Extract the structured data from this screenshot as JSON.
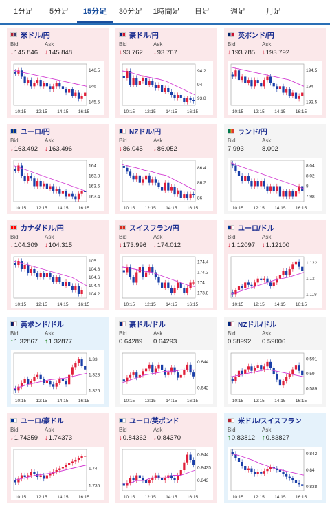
{
  "tabs": [
    "1分足",
    "5分足",
    "15分足",
    "30分足",
    "1時間足",
    "日足",
    "週足",
    "月足"
  ],
  "active_tab": 2,
  "labels": {
    "bid": "Bid",
    "ask": "Ask"
  },
  "cards": [
    {
      "name": "米ドル/円",
      "dir": "down",
      "bid": "145.846",
      "ask": "145.848",
      "flag": "us",
      "chart_data": {
        "type": "candlestick",
        "x_ticks": [
          "10:15",
          "12:15",
          "14:15",
          "16:15"
        ],
        "y_ticks": [
          "146.5",
          "146",
          "145.5"
        ],
        "ylim": [
          145.4,
          146.7
        ],
        "closes": [
          146.4,
          146.5,
          146.3,
          146.1,
          146.2,
          146.0,
          146.1,
          146.2,
          146.0,
          146.1,
          146.0,
          145.9,
          146.0,
          146.1,
          146.0,
          145.9,
          145.8,
          145.9,
          145.7,
          145.8,
          145.6,
          145.7,
          145.8
        ],
        "ma": [
          146.5,
          146.45,
          146.4,
          146.35,
          146.3,
          146.25,
          146.2,
          146.15,
          146.1,
          146.05,
          146.0
        ]
      }
    },
    {
      "name": "豪ドル/円",
      "dir": "down",
      "bid": "93.762",
      "ask": "93.767",
      "flag": "au",
      "chart_data": {
        "type": "candlestick",
        "x_ticks": [
          "10:15",
          "12:15",
          "14:15",
          "16:15"
        ],
        "y_ticks": [
          "94.2",
          "94",
          "93.8"
        ],
        "ylim": [
          93.7,
          94.3
        ],
        "closes": [
          94.1,
          94.2,
          94.0,
          94.1,
          94.0,
          94.05,
          94.1,
          94.0,
          94.05,
          94.0,
          93.95,
          94.0,
          93.9,
          93.95,
          93.9,
          93.85,
          93.8,
          93.85,
          93.8,
          93.75,
          93.8,
          93.78,
          93.76
        ],
        "ma": [
          94.2,
          94.18,
          94.15,
          94.12,
          94.1,
          94.08,
          94.05,
          94.0,
          93.95,
          93.9,
          93.85
        ]
      }
    },
    {
      "name": "英ポンド/円",
      "dir": "down",
      "bid": "193.785",
      "ask": "193.792",
      "flag": "uk",
      "chart_data": {
        "type": "candlestick",
        "x_ticks": [
          "10:15",
          "12:15",
          "14:15",
          "16:15"
        ],
        "y_ticks": [
          "194.5",
          "194",
          "193.5"
        ],
        "ylim": [
          193.4,
          194.7
        ],
        "closes": [
          194.3,
          194.5,
          194.2,
          194.3,
          194.1,
          194.2,
          194.0,
          194.2,
          194.1,
          194.0,
          194.2,
          194.3,
          194.1,
          194.0,
          193.9,
          194.0,
          193.8,
          193.9,
          193.7,
          193.8,
          193.6,
          193.7,
          193.8
        ],
        "ma": [
          194.6,
          194.55,
          194.5,
          194.45,
          194.4,
          194.35,
          194.3,
          194.25,
          194.2,
          194.1,
          194.0
        ]
      }
    },
    {
      "name": "ユーロ/円",
      "dir": "down",
      "bid": "163.492",
      "ask": "163.496",
      "flag": "eu",
      "chart_data": {
        "type": "candlestick",
        "x_ticks": [
          "10:15",
          "12:15",
          "14:15",
          "16:15"
        ],
        "y_ticks": [
          "164",
          "163.8",
          "163.6",
          "163.4"
        ],
        "ylim": [
          163.3,
          164.1
        ],
        "closes": [
          163.9,
          164.0,
          163.8,
          163.7,
          163.8,
          163.75,
          163.6,
          163.7,
          163.6,
          163.65,
          163.55,
          163.6,
          163.5,
          163.55,
          163.45,
          163.5,
          163.4,
          163.45,
          163.4,
          163.35,
          163.45,
          163.5,
          163.49
        ],
        "ma": [
          164.0,
          163.95,
          163.9,
          163.85,
          163.8,
          163.75,
          163.7,
          163.65,
          163.6,
          163.55,
          163.5
        ]
      }
    },
    {
      "name": "NZドル/円",
      "dir": "down",
      "bid": "86.045",
      "ask": "86.052",
      "flag": "nz",
      "chart_data": {
        "type": "candlestick",
        "x_ticks": [
          "10:15",
          "12:15",
          "14:15",
          "16:15"
        ],
        "y_ticks": [
          "86.4",
          "86.2",
          "86"
        ],
        "ylim": [
          85.95,
          86.5
        ],
        "closes": [
          86.4,
          86.35,
          86.3,
          86.25,
          86.3,
          86.2,
          86.25,
          86.3,
          86.2,
          86.25,
          86.2,
          86.15,
          86.1,
          86.2,
          86.1,
          86.15,
          86.05,
          86.1,
          86.0,
          86.05,
          86.0,
          86.05,
          86.04
        ],
        "ma": [
          86.45,
          86.42,
          86.4,
          86.37,
          86.35,
          86.32,
          86.3,
          86.25,
          86.2,
          86.15,
          86.1
        ]
      }
    },
    {
      "name": "ランド/円",
      "dir": "neutral",
      "bid": "7.993",
      "ask": "8.002",
      "flag": "za",
      "chart_data": {
        "type": "candlestick",
        "x_ticks": [
          "10:15",
          "12:15",
          "14:15",
          "16:15"
        ],
        "y_ticks": [
          "8.04",
          "8.02",
          "8",
          "7.98"
        ],
        "ylim": [
          7.97,
          8.05
        ],
        "closes": [
          8.04,
          8.03,
          8.02,
          8.01,
          8.02,
          8.01,
          8.0,
          8.01,
          8.0,
          8.01,
          8.0,
          7.99,
          8.0,
          7.99,
          8.0,
          7.98,
          7.99,
          7.98,
          7.99,
          7.98,
          7.99,
          8.0,
          7.99
        ],
        "ma": [
          8.045,
          8.04,
          8.035,
          8.03,
          8.025,
          8.02,
          8.015,
          8.01,
          8.005,
          8.0,
          7.995
        ]
      }
    },
    {
      "name": "カナダドル/円",
      "dir": "down",
      "bid": "104.309",
      "ask": "104.315",
      "flag": "ca",
      "chart_data": {
        "type": "candlestick",
        "x_ticks": [
          "10:15",
          "12:15",
          "14:15",
          "16:15"
        ],
        "y_ticks": [
          "105",
          "104.8",
          "104.6",
          "104.4",
          "104.2"
        ],
        "ylim": [
          104.1,
          105.1
        ],
        "closes": [
          104.9,
          105.0,
          104.8,
          104.9,
          104.7,
          104.8,
          104.7,
          104.6,
          104.7,
          104.6,
          104.7,
          104.6,
          104.5,
          104.6,
          104.5,
          104.4,
          104.5,
          104.4,
          104.3,
          104.4,
          104.2,
          104.3,
          104.3
        ],
        "ma": [
          105.0,
          104.95,
          104.9,
          104.85,
          104.8,
          104.75,
          104.7,
          104.65,
          104.6,
          104.5,
          104.4
        ]
      }
    },
    {
      "name": "スイスフラン/円",
      "dir": "down",
      "bid": "173.996",
      "ask": "174.012",
      "flag": "ch",
      "chart_data": {
        "type": "candlestick",
        "x_ticks": [
          "10:15",
          "12:15",
          "14:15",
          "16:15"
        ],
        "y_ticks": [
          "174.4",
          "174.2",
          "174",
          "173.8"
        ],
        "ylim": [
          173.7,
          174.5
        ],
        "closes": [
          174.2,
          174.3,
          174.1,
          174.0,
          174.2,
          174.3,
          174.1,
          174.2,
          174.3,
          174.2,
          174.1,
          174.0,
          173.9,
          174.0,
          173.9,
          173.8,
          173.9,
          174.0,
          173.9,
          173.8,
          173.9,
          174.0,
          174.0
        ],
        "ma": [
          174.3,
          174.28,
          174.25,
          174.22,
          174.2,
          174.15,
          174.1,
          174.05,
          174.0,
          173.95,
          173.92
        ]
      }
    },
    {
      "name": "ユーロ/ドル",
      "dir": "down",
      "bid": "1.12097",
      "ask": "1.12100",
      "flag": "euus",
      "chart_data": {
        "type": "candlestick",
        "x_ticks": [
          "10:15",
          "12:15",
          "14:15",
          "16:15"
        ],
        "y_ticks": [
          "1.122",
          "1.12",
          "1.118"
        ],
        "ylim": [
          1.1175,
          1.1228
        ],
        "closes": [
          1.118,
          1.1185,
          1.119,
          1.1188,
          1.1195,
          1.1192,
          1.119,
          1.1195,
          1.12,
          1.1198,
          1.12,
          1.1195,
          1.119,
          1.1195,
          1.12,
          1.1205,
          1.121,
          1.1205,
          1.1212,
          1.1218,
          1.1222,
          1.1215,
          1.121
        ],
        "ma": [
          1.118,
          1.1183,
          1.1186,
          1.1189,
          1.1192,
          1.1195,
          1.1198,
          1.12,
          1.1202,
          1.1205,
          1.1208
        ]
      }
    },
    {
      "name": "英ポンド/ドル",
      "dir": "up",
      "bid": "1.32867",
      "ask": "1.32877",
      "flag": "ukus",
      "chart_data": {
        "type": "candlestick",
        "x_ticks": [
          "10:15",
          "12:15",
          "14:15",
          "16:15"
        ],
        "y_ticks": [
          "1.33",
          "1.328",
          "1.326"
        ],
        "ylim": [
          1.3255,
          1.3308
        ],
        "closes": [
          1.326,
          1.3265,
          1.327,
          1.3275,
          1.3268,
          1.3272,
          1.3278,
          1.328,
          1.3275,
          1.327,
          1.3272,
          1.3268,
          1.3265,
          1.327,
          1.3275,
          1.3272,
          1.3268,
          1.328,
          1.329,
          1.3295,
          1.33,
          1.3292,
          1.3287
        ],
        "ma": [
          1.3262,
          1.3265,
          1.3268,
          1.327,
          1.3272,
          1.3274,
          1.3275,
          1.3276,
          1.3278,
          1.328,
          1.3282
        ]
      }
    },
    {
      "name": "豪ドル/ドル",
      "dir": "neutral",
      "bid": "0.64289",
      "ask": "0.64293",
      "flag": "auus",
      "chart_data": {
        "type": "candlestick",
        "x_ticks": [
          "10:15",
          "12:15",
          "14:15",
          "16:15"
        ],
        "y_ticks": [
          "0.644",
          "0.642"
        ],
        "ylim": [
          0.6415,
          0.6447
        ],
        "closes": [
          0.6425,
          0.6428,
          0.643,
          0.6432,
          0.6428,
          0.643,
          0.6433,
          0.6435,
          0.6438,
          0.6432,
          0.6435,
          0.6438,
          0.6434,
          0.643,
          0.6432,
          0.6436,
          0.6432,
          0.6428,
          0.643,
          0.6434,
          0.6438,
          0.6432,
          0.6429
        ],
        "ma": [
          0.6424,
          0.6426,
          0.6428,
          0.643,
          0.6431,
          0.6432,
          0.6433,
          0.6433,
          0.6434,
          0.6434,
          0.6434
        ]
      }
    },
    {
      "name": "NZドル/ドル",
      "dir": "neutral",
      "bid": "0.58992",
      "ask": "0.59006",
      "flag": "nzus",
      "chart_data": {
        "type": "candlestick",
        "x_ticks": [
          "10:15",
          "12:15",
          "14:15",
          "16:15"
        ],
        "y_ticks": [
          "0.591",
          "0.59",
          "0.589"
        ],
        "ylim": [
          0.5886,
          0.5914
        ],
        "closes": [
          0.5895,
          0.5898,
          0.5902,
          0.59,
          0.5903,
          0.5905,
          0.5902,
          0.5904,
          0.5906,
          0.5903,
          0.5905,
          0.5908,
          0.5904,
          0.59,
          0.5896,
          0.5892,
          0.5895,
          0.5898,
          0.59,
          0.5903,
          0.5906,
          0.5902,
          0.5899
        ],
        "ma": [
          0.5898,
          0.5899,
          0.59,
          0.5901,
          0.5902,
          0.5903,
          0.5902,
          0.5901,
          0.59,
          0.5899,
          0.5898
        ]
      }
    },
    {
      "name": "ユーロ/豪ドル",
      "dir": "down",
      "bid": "1.74359",
      "ask": "1.74373",
      "flag": "euau",
      "chart_data": {
        "type": "candlestick",
        "x_ticks": [
          "10:15",
          "12:15",
          "14:15",
          "16:15"
        ],
        "y_ticks": [
          "1.74",
          "1.735"
        ],
        "ylim": [
          1.7335,
          1.7455
        ],
        "closes": [
          1.736,
          1.737,
          1.738,
          1.7375,
          1.738,
          1.739,
          1.7385,
          1.7375,
          1.738,
          1.737,
          1.738,
          1.7385,
          1.739,
          1.7395,
          1.74,
          1.7405,
          1.741,
          1.7415,
          1.742,
          1.7425,
          1.743,
          1.7435,
          1.7436
        ],
        "ma": [
          1.7365,
          1.737,
          1.7375,
          1.738,
          1.7383,
          1.7386,
          1.739,
          1.7395,
          1.74,
          1.7405,
          1.741
        ]
      }
    },
    {
      "name": "ユーロ/英ポンド",
      "dir": "down",
      "bid": "0.84362",
      "ask": "0.84370",
      "flag": "euuk",
      "chart_data": {
        "type": "candlestick",
        "x_ticks": [
          "10:15",
          "12:15",
          "14:15",
          "16:15"
        ],
        "y_ticks": [
          "0.844",
          "0.8435",
          "0.843"
        ],
        "ylim": [
          0.8426,
          0.8442
        ],
        "closes": [
          0.8428,
          0.8429,
          0.8431,
          0.843,
          0.8432,
          0.8431,
          0.843,
          0.8429,
          0.843,
          0.8431,
          0.8432,
          0.8431,
          0.843,
          0.8431,
          0.8432,
          0.8431,
          0.843,
          0.8432,
          0.8434,
          0.8437,
          0.844,
          0.8438,
          0.8436
        ],
        "ma": [
          0.8429,
          0.8429,
          0.843,
          0.843,
          0.8431,
          0.8431,
          0.8431,
          0.8432,
          0.8432,
          0.8433,
          0.8434
        ]
      }
    },
    {
      "name": "米ドル/スイスフラン",
      "dir": "up",
      "bid": "0.83812",
      "ask": "0.83827",
      "flag": "usch",
      "chart_data": {
        "type": "candlestick",
        "x_ticks": [
          "10:15",
          "12:15",
          "14:15",
          "16:15"
        ],
        "y_ticks": [
          "0.842",
          "0.84",
          "0.838"
        ],
        "ylim": [
          0.8375,
          0.8425
        ],
        "closes": [
          0.842,
          0.8415,
          0.841,
          0.8405,
          0.84,
          0.8402,
          0.8398,
          0.8395,
          0.8398,
          0.8396,
          0.8399,
          0.8401,
          0.8404,
          0.8402,
          0.84,
          0.8398,
          0.8395,
          0.8392,
          0.839,
          0.8388,
          0.8385,
          0.8383,
          0.8381
        ],
        "ma": [
          0.842,
          0.8418,
          0.8415,
          0.8412,
          0.8408,
          0.8405,
          0.8402,
          0.84,
          0.8398,
          0.8396,
          0.8394
        ]
      }
    }
  ]
}
